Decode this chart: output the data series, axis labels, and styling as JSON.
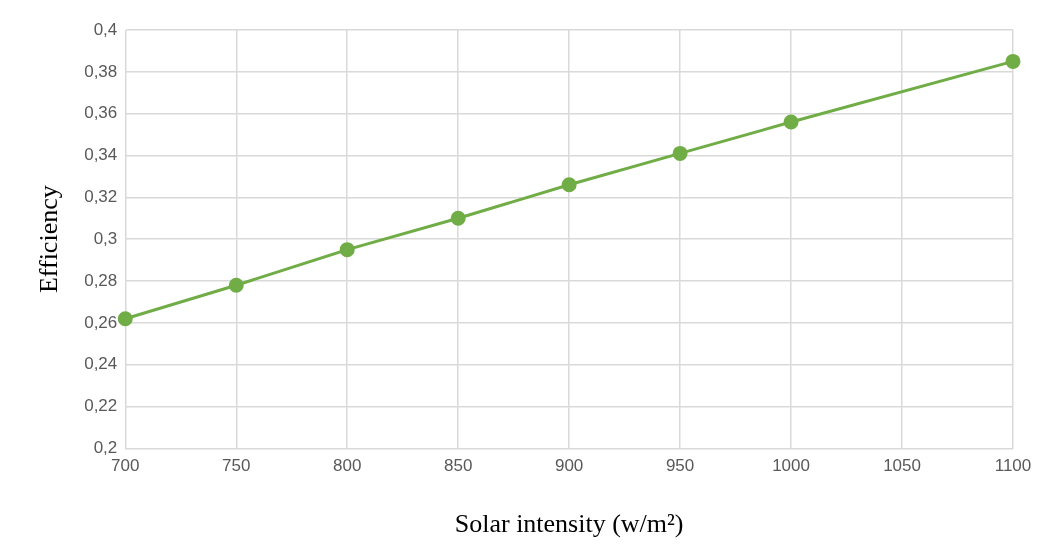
{
  "chart_data": {
    "type": "line",
    "xlabel": "Solar intensity (w/m²)",
    "ylabel": "Efficiency",
    "x": [
      700,
      750,
      800,
      850,
      900,
      950,
      1000,
      1100
    ],
    "series": [
      {
        "color": "#70ad47",
        "values": [
          0.262,
          0.278,
          0.295,
          0.31,
          0.326,
          0.341,
          0.356,
          0.385
        ]
      }
    ],
    "xlim": [
      700,
      1100
    ],
    "xticks": [
      700,
      750,
      800,
      850,
      900,
      950,
      1000,
      1050,
      1100
    ],
    "ylim": [
      0.2,
      0.4
    ],
    "yticks": [
      {
        "value": 0.2,
        "label": "0,2"
      },
      {
        "value": 0.22,
        "label": "0,22"
      },
      {
        "value": 0.24,
        "label": "0,24"
      },
      {
        "value": 0.26,
        "label": "0,26"
      },
      {
        "value": 0.28,
        "label": "0,28"
      },
      {
        "value": 0.3,
        "label": "0,3"
      },
      {
        "value": 0.32,
        "label": "0,32"
      },
      {
        "value": 0.34,
        "label": "0,34"
      },
      {
        "value": 0.36,
        "label": "0,36"
      },
      {
        "value": 0.38,
        "label": "0,38"
      },
      {
        "value": 0.4,
        "label": "0,4"
      }
    ],
    "grid": true,
    "marker": "circle",
    "line_style": "solid",
    "legend": false
  }
}
